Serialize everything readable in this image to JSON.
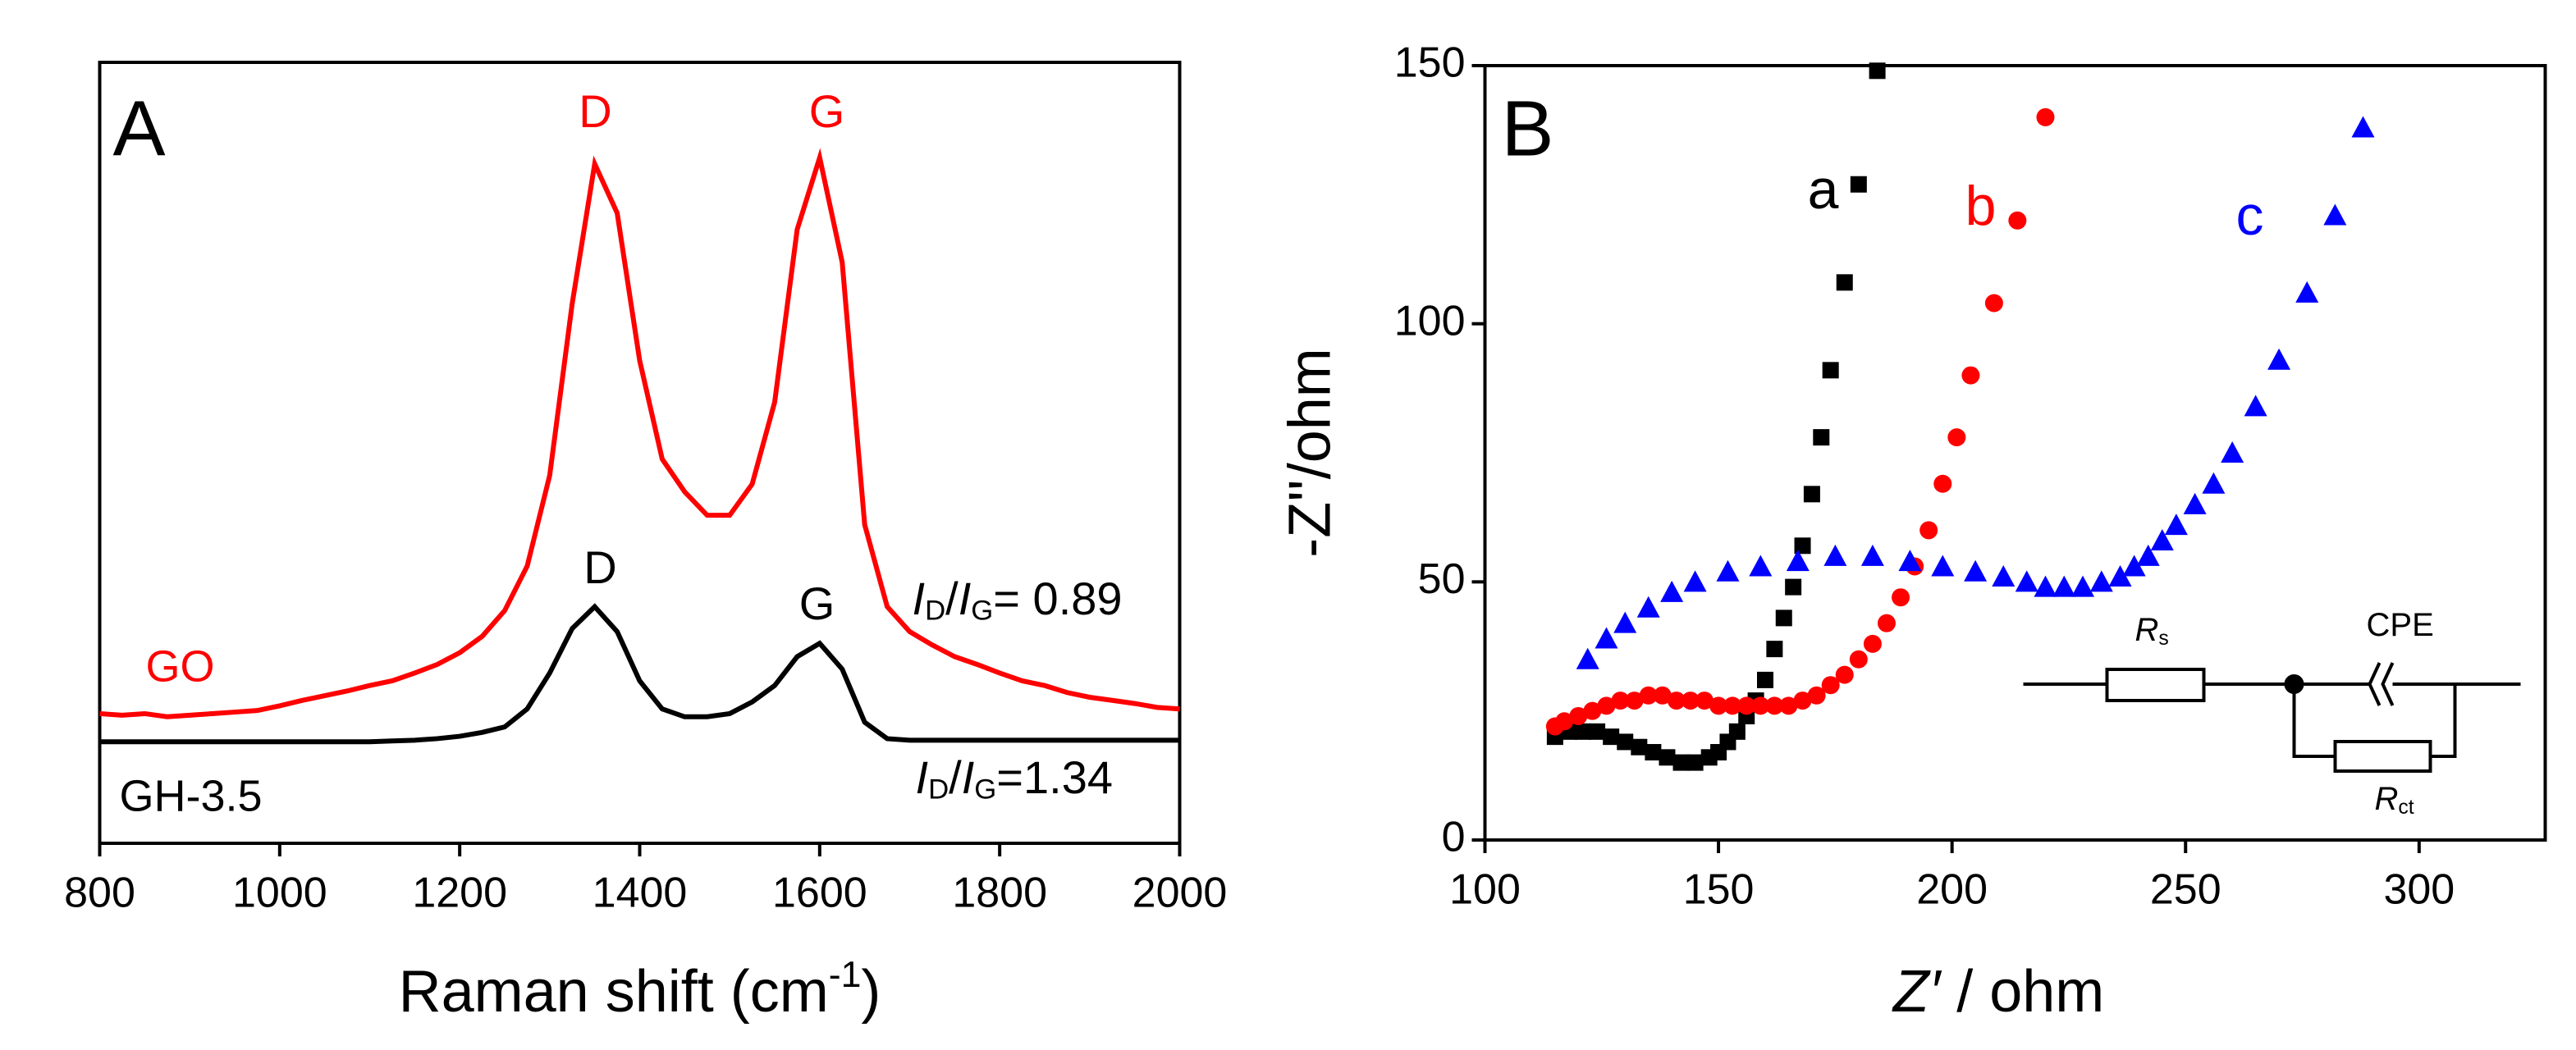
{
  "chart_data": [
    {
      "type": "line",
      "panel": "A",
      "x_label": [
        "Raman shift (cm",
        "-1",
        ")"
      ],
      "x": [
        800,
        825,
        850,
        875,
        900,
        925,
        950,
        975,
        1000,
        1025,
        1050,
        1075,
        1100,
        1125,
        1150,
        1175,
        1200,
        1225,
        1250,
        1275,
        1300,
        1325,
        1350,
        1375,
        1400,
        1425,
        1450,
        1475,
        1500,
        1525,
        1550,
        1575,
        1600,
        1625,
        1650,
        1675,
        1700,
        1725,
        1750,
        1775,
        1800,
        1825,
        1850,
        1875,
        1900,
        1925,
        1950,
        1975,
        2000
      ],
      "xlim": [
        800,
        2000
      ],
      "xticks": [
        800,
        1000,
        1200,
        1400,
        1600,
        1800,
        2000
      ],
      "ylim": [
        0,
        100
      ],
      "series": [
        {
          "name": "GO",
          "color": "#ff0000",
          "values": [
            16.6,
            16.4,
            16.6,
            16.2,
            16.4,
            16.6,
            16.8,
            17.0,
            17.6,
            18.3,
            18.9,
            19.5,
            20.2,
            20.8,
            21.8,
            22.9,
            24.4,
            26.5,
            29.8,
            35.5,
            47.1,
            69.1,
            87.0,
            80.7,
            61.8,
            49.2,
            45.0,
            42.0,
            42.0,
            46.0,
            56.5,
            78.6,
            87.8,
            74.4,
            40.8,
            30.3,
            27.1,
            25.4,
            23.9,
            22.9,
            21.8,
            20.8,
            20.2,
            19.3,
            18.7,
            18.3,
            17.9,
            17.4,
            17.2
          ]
        },
        {
          "name": "GH-3.5",
          "color": "#000000",
          "values": [
            13.0,
            13.0,
            13.0,
            13.0,
            13.0,
            13.0,
            13.0,
            13.0,
            13.0,
            13.0,
            13.0,
            13.0,
            13.0,
            13.1,
            13.2,
            13.4,
            13.7,
            14.2,
            14.9,
            17.2,
            21.8,
            27.5,
            30.3,
            27.1,
            20.8,
            17.2,
            16.2,
            16.2,
            16.6,
            18.1,
            20.2,
            23.9,
            25.6,
            22.3,
            15.5,
            13.4,
            13.2,
            13.2,
            13.2,
            13.2,
            13.2,
            13.2,
            13.2,
            13.2,
            13.2,
            13.2,
            13.2,
            13.2,
            13.2
          ]
        }
      ],
      "annotations": [
        [
          "D"
        ],
        [
          "G"
        ],
        [
          "D"
        ],
        [
          "G"
        ],
        [
          "I",
          "D",
          "/",
          "I",
          "G",
          "= 0.89"
        ],
        [
          "I",
          "D",
          "/",
          "I",
          "G",
          "=1.34"
        ]
      ]
    },
    {
      "type": "scatter",
      "panel": "B",
      "x_label": [
        "Z′",
        " / ohm"
      ],
      "y_label": "-Z''/ohm",
      "xlim": [
        100,
        327
      ],
      "xticks": [
        100,
        150,
        200,
        250,
        300
      ],
      "ylim": [
        0,
        150
      ],
      "yticks": [
        0,
        50,
        100,
        150
      ],
      "series": [
        {
          "name": "a",
          "color": "#000000",
          "marker": "square",
          "x": [
            115,
            118,
            121,
            124,
            127,
            130,
            133,
            136,
            139,
            142,
            145,
            148,
            150,
            152,
            154,
            156,
            158,
            160,
            162,
            164,
            166,
            168,
            170,
            172,
            174,
            177,
            180,
            184
          ],
          "values": [
            20,
            21,
            21,
            21,
            20,
            19,
            18,
            17,
            16,
            15,
            15,
            16,
            17,
            19,
            21,
            24,
            27,
            31,
            37,
            43,
            49,
            57,
            67,
            78,
            91,
            108,
            127,
            149
          ]
        },
        {
          "name": "b",
          "color": "#ff0000",
          "marker": "circle",
          "x": [
            115,
            117,
            120,
            123,
            126,
            129,
            132,
            135,
            138,
            141,
            144,
            147,
            150,
            153,
            156,
            159,
            162,
            165,
            168,
            171,
            174,
            177,
            180,
            183,
            186,
            189,
            192,
            195,
            198,
            201,
            204,
            209,
            214,
            220
          ],
          "values": [
            22,
            23,
            24,
            25,
            26,
            27,
            27,
            28,
            28,
            27,
            27,
            27,
            26,
            26,
            26,
            26,
            26,
            26,
            27,
            28,
            30,
            32,
            35,
            38,
            42,
            47,
            53,
            60,
            69,
            78,
            90,
            104,
            120,
            140
          ]
        },
        {
          "name": "c",
          "color": "#0000ff",
          "marker": "triangle",
          "x": [
            122,
            126,
            130,
            135,
            140,
            145,
            152,
            159,
            167,
            175,
            183,
            191,
            198,
            205,
            211,
            216,
            220,
            224,
            228,
            232,
            236,
            239,
            242,
            245,
            248,
            252,
            256,
            260,
            265,
            270,
            276,
            282,
            288
          ],
          "values": [
            35,
            39,
            42,
            45,
            48,
            50,
            52,
            53,
            54,
            55,
            55,
            54,
            53,
            52,
            51,
            50,
            49,
            49,
            49,
            50,
            51,
            53,
            55,
            58,
            61,
            65,
            69,
            75,
            84,
            93,
            106,
            121,
            138
          ]
        }
      ],
      "annotations": [
        [
          "R",
          "s"
        ],
        [
          "CPE"
        ],
        [
          "R",
          "ct"
        ]
      ]
    }
  ]
}
